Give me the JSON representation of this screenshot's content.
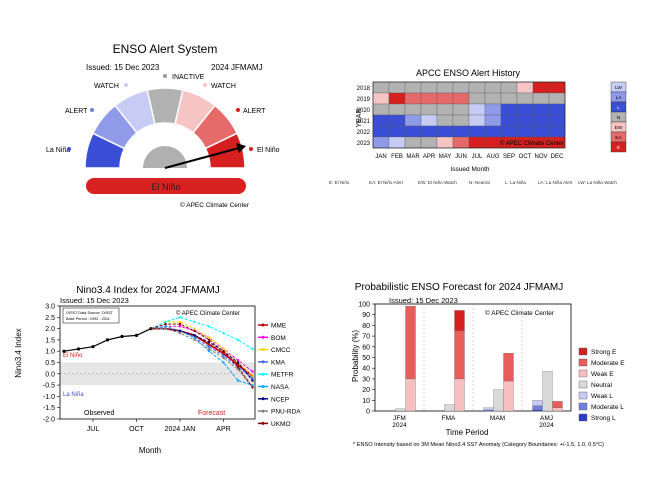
{
  "gauge": {
    "title": "ENSO Alert System",
    "issued": "Issued: 15 Dec 2023",
    "season": "2024 JFMAMJ",
    "labels": {
      "inactive": "INACTIVE",
      "watch_left": "WATCH",
      "watch_right": "WATCH",
      "alert_left": "ALERT",
      "alert_right": "ALERT",
      "la_nina": "La Niña",
      "el_nino": "El Niño"
    },
    "segment_colors": [
      "#3a4fd6",
      "#8f9ae8",
      "#c6ccf4",
      "#b2b2b2",
      "#f7c4c4",
      "#e76a6a",
      "#d62020"
    ],
    "status_bar": "El Niño",
    "status_color": "#d82121",
    "footer": "© APEC Climate Center"
  },
  "history": {
    "title": "APCC ENSO Alert History",
    "ylabel": "YEAR",
    "xlabel": "Issued Month",
    "years": [
      "2018",
      "2019",
      "2020",
      "2021",
      "2022",
      "2023"
    ],
    "months": [
      "JAN",
      "FEB",
      "MAR",
      "APR",
      "MAY",
      "JUN",
      "JUL",
      "AUG",
      "SEP",
      "OCT",
      "NOV",
      "DEC"
    ],
    "grid": [
      [
        "N",
        "N",
        "N",
        "N",
        "N",
        "N",
        "N",
        "N",
        "N",
        "EW",
        "E",
        "E"
      ],
      [
        "EW",
        "E",
        "EA",
        "EA",
        "EA",
        "EA",
        "N",
        "N",
        "N",
        "N",
        "N",
        "N"
      ],
      [
        "N",
        "N",
        "N",
        "N",
        "N",
        "N",
        "LW",
        "LA",
        "L",
        "L",
        "L",
        "L"
      ],
      [
        "L",
        "L",
        "LA",
        "LW",
        "N",
        "N",
        "LW",
        "LA",
        "L",
        "L",
        "L",
        "L"
      ],
      [
        "L",
        "L",
        "L",
        "L",
        "L",
        "L",
        "L",
        "L",
        "L",
        "L",
        "L",
        "L"
      ],
      [
        "LA",
        "LW",
        "N",
        "N",
        "EW",
        "EA",
        "E",
        "E",
        "E",
        "E",
        "E",
        "E"
      ]
    ],
    "categories": [
      {
        "code": "E",
        "label": "El Niño",
        "color": "#d62020"
      },
      {
        "code": "EA",
        "label": "El Niño Alert",
        "color": "#e76a6a"
      },
      {
        "code": "EW",
        "label": "El Niño Watch",
        "color": "#f7c4c4"
      },
      {
        "code": "N",
        "label": "Neutral",
        "color": "#b2b2b2"
      },
      {
        "code": "LW",
        "label": "La Niña Watch",
        "color": "#c6ccf4"
      },
      {
        "code": "LA",
        "label": "La Niña Alert",
        "color": "#8f9ae8"
      },
      {
        "code": "L",
        "label": "La Niña",
        "color": "#3a4fd6"
      }
    ],
    "legend_order": [
      "LW",
      "LA",
      "L",
      "N",
      "EW",
      "EA",
      "E"
    ],
    "bottom_legend": [
      "E: El Niño",
      "EA: El Niño Alert",
      "EW: El Niño Watch",
      "N: Neutral",
      "L: La Niña",
      "LA: La Niña Alert",
      "LW: La Niña Watch"
    ],
    "footer": "© APEC Climate Center"
  },
  "nino": {
    "title": "Nino3.4 Index for 2024 JFMAMJ",
    "issued": "Issued: 15 Dec 2023",
    "info_line1": "OISST Data Source: OISST",
    "info_line2": "Base Period : 1992 - 2011",
    "footer": "© APEC Climate Center",
    "ylabel": "Nino3.4 Index",
    "xlabel": "Month",
    "xticks": [
      "JUL",
      "OCT",
      "2024 JAN",
      "APR"
    ],
    "yticks": [
      "3.0",
      "2.5",
      "2.0",
      "1.5",
      "1.0",
      "0.5",
      "0.0",
      "-0.5",
      "-1.0",
      "-1.5",
      "-2.0"
    ],
    "ylim": [
      -2.0,
      3.0
    ],
    "el_nino_label": "El Niño",
    "la_nina_label": "La Niña",
    "observed_label": "Observed",
    "forecast_label": "Forecast",
    "observed": {
      "months": [
        "2023-05",
        "2023-06",
        "2023-07",
        "2023-08",
        "2023-09",
        "2023-10",
        "2023-11"
      ],
      "values": [
        1.0,
        1.1,
        1.2,
        1.5,
        1.65,
        1.7,
        2.0
      ]
    },
    "forecast_months": [
      "2023-12",
      "2024-01",
      "2024-02",
      "2024-03",
      "2024-04",
      "2024-05",
      "2024-06"
    ],
    "models": [
      {
        "name": "MME",
        "color": "#c00000",
        "values": [
          2.0,
          1.9,
          1.7,
          1.3,
          0.9,
          0.4,
          -0.1
        ]
      },
      {
        "name": "BOM",
        "color": "#ff00ff",
        "values": [
          2.1,
          2.1,
          1.9,
          1.6,
          1.1,
          0.6,
          0.1
        ]
      },
      {
        "name": "CMCC",
        "color": "#ffd700",
        "values": [
          2.3,
          2.3,
          2.0,
          1.6,
          1.1,
          0.5,
          -0.1
        ]
      },
      {
        "name": "KMA",
        "color": "#4169e1",
        "values": [
          2.0,
          1.9,
          1.6,
          1.2,
          0.8,
          0.3,
          -0.2
        ]
      },
      {
        "name": "METFR",
        "color": "#00ffff",
        "values": [
          2.3,
          2.5,
          2.3,
          2.1,
          1.8,
          1.5,
          1.1
        ]
      },
      {
        "name": "NASA",
        "color": "#00aaff",
        "values": [
          2.1,
          1.9,
          1.6,
          1.0,
          0.5,
          -0.3,
          -0.5
        ]
      },
      {
        "name": "NCEP",
        "color": "#000080",
        "values": [
          2.0,
          1.9,
          1.7,
          1.4,
          1.0,
          0.5,
          -0.3
        ]
      },
      {
        "name": "PNU-RDA",
        "color": "#808080",
        "values": [
          2.0,
          1.8,
          1.5,
          1.1,
          0.7,
          0.2,
          -0.6
        ]
      },
      {
        "name": "UKMO",
        "color": "#8b0000",
        "values": [
          2.2,
          2.2,
          1.9,
          1.5,
          1.0,
          0.3,
          -0.6
        ]
      }
    ]
  },
  "prob": {
    "title": "Probabilistic ENSO Forecast for 2024 JFMAMJ",
    "issued": "Issued: 15 Dec 2023",
    "footer": "© APEC Climate Center",
    "ylabel": "Probability (%)",
    "xlabel": "Time Period",
    "yticks": [
      "100",
      "90",
      "80",
      "70",
      "60",
      "50",
      "40",
      "30",
      "20",
      "10",
      "0"
    ],
    "ylim": [
      0,
      100
    ],
    "groups": [
      {
        "label1": "JFM",
        "label2": "2024"
      },
      {
        "label1": "FMA",
        "label2": ""
      },
      {
        "label1": "MAM",
        "label2": ""
      },
      {
        "label1": "AMJ",
        "label2": "2024"
      }
    ],
    "categories": [
      {
        "name": "Strong E",
        "color": "#d61f1f"
      },
      {
        "name": "Moderate E",
        "color": "#e85c5c"
      },
      {
        "name": "Weak E",
        "color": "#f6c0c0"
      },
      {
        "name": "Neutral",
        "color": "#d9d9d9"
      },
      {
        "name": "Weak L",
        "color": "#c6ccf4"
      },
      {
        "name": "Moderate L",
        "color": "#6f7ee0"
      },
      {
        "name": "Strong L",
        "color": "#2b3cc9"
      }
    ],
    "bars": [
      {
        "group": "JFM",
        "segments": [
          0,
          0,
          0,
          2,
          30,
          68,
          0
        ]
      },
      {
        "group": "FMA",
        "segments": [
          0,
          0,
          0,
          6,
          30,
          45,
          19
        ]
      },
      {
        "group": "MAM",
        "segments": [
          0,
          1,
          2,
          20,
          28,
          26,
          0
        ]
      },
      {
        "group": "AMJ",
        "segments": [
          1,
          4,
          5,
          37,
          3,
          6,
          0
        ]
      }
    ],
    "footnote": "* ENSO Intensity based on 3M Mean Nino3.4 SST Anomaly (Category Boundaries: +/-1.5, 1.0, 0.5°C)"
  }
}
